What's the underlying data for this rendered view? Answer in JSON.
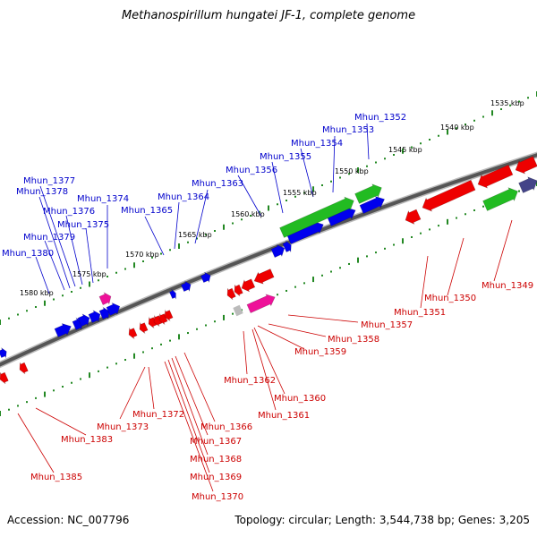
{
  "title": "Methanospirillum hungatei JF-1, complete genome",
  "footer": {
    "accession": "Accession: NC_007796",
    "summary": "Topology: circular; Length: 3,544,738 bp; Genes: 3,205"
  },
  "colors": {
    "forward_label": "#0000cc",
    "reverse_label": "#cc0000",
    "blue_gene": "#0000ee",
    "red_gene": "#ee0000",
    "green_gene": "#22bb22",
    "pink_gene": "#ee1199",
    "ticks": "#228822",
    "backbone": "#555555"
  },
  "kbp_labels": [
    "1535 kbp",
    "1540 kbp",
    "1545 kbp",
    "1550 kbp",
    "1555 kbp",
    "1560 kbp",
    "1565 kbp",
    "1570 kbp",
    "1575 kbp",
    "1580 kbp"
  ],
  "forward_genes": [
    "Mhun_1352",
    "Mhun_1353",
    "Mhun_1354",
    "Mhun_1355",
    "Mhun_1356",
    "Mhun_1363",
    "Mhun_1364",
    "Mhun_1365",
    "Mhun_1374",
    "Mhun_1375",
    "Mhun_1376",
    "Mhun_1377",
    "Mhun_1378",
    "Mhun_1379",
    "Mhun_1380"
  ],
  "reverse_genes": [
    "Mhun_1349",
    "Mhun_1350",
    "Mhun_1351",
    "Mhun_1357",
    "Mhun_1358",
    "Mhun_1359",
    "Mhun_1360",
    "Mhun_1361",
    "Mhun_1362",
    "Mhun_1366",
    "Mhun_1367",
    "Mhun_1368",
    "Mhun_1369",
    "Mhun_1370",
    "Mhun_1372",
    "Mhun_1373",
    "Mhun_1383",
    "Mhun_1385"
  ]
}
